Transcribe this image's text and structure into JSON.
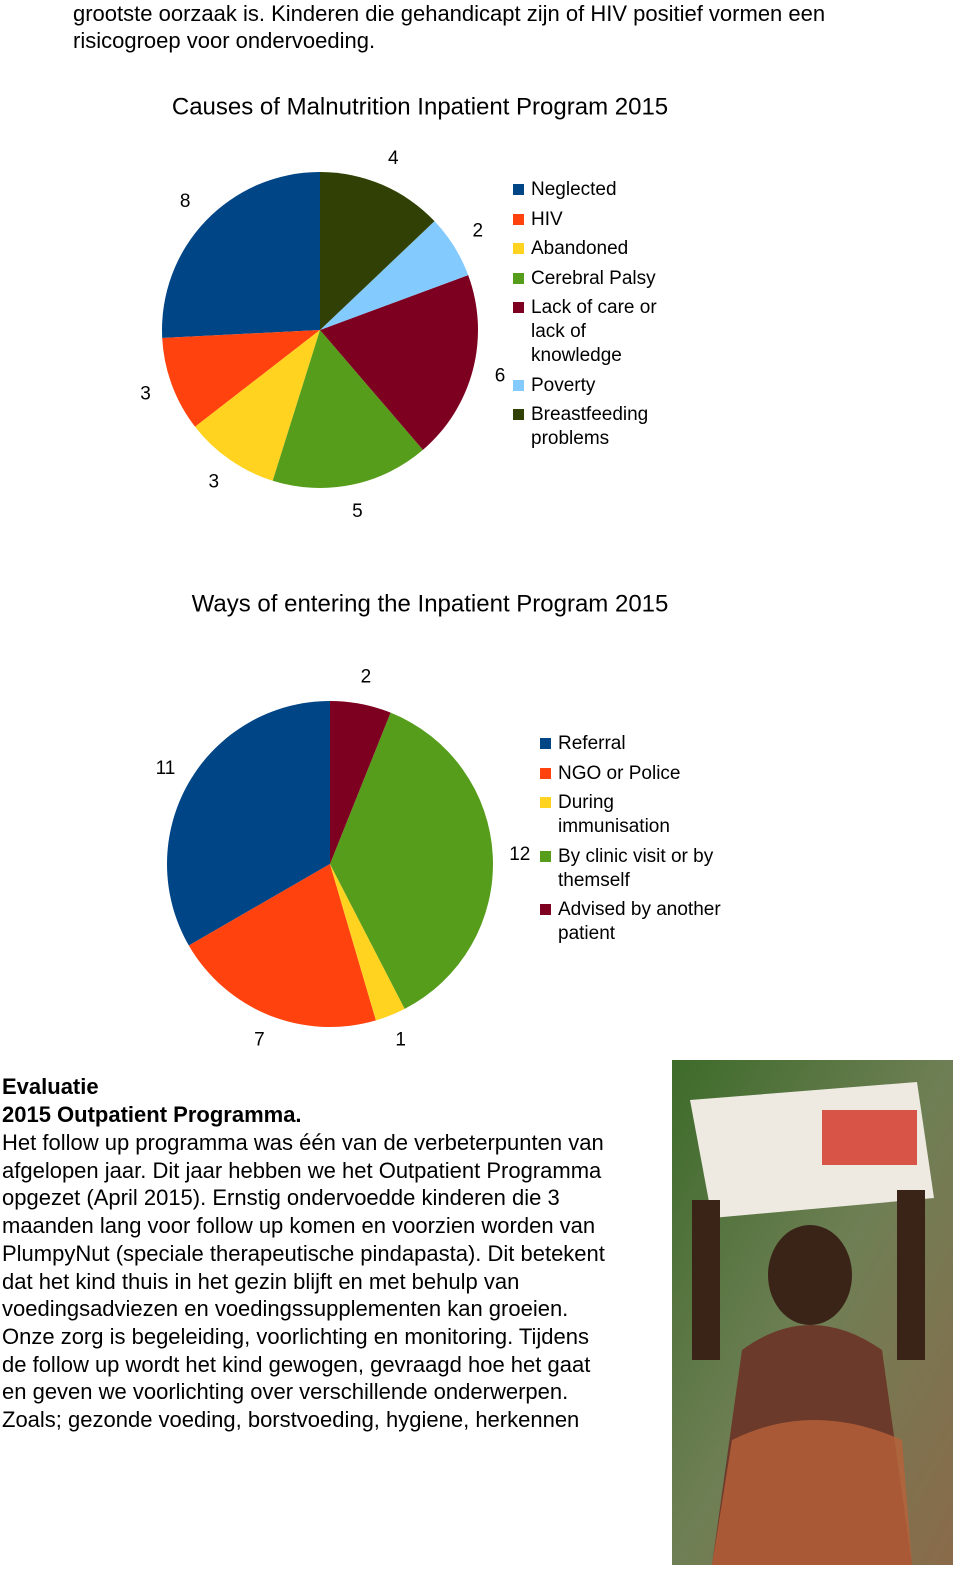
{
  "intro": [
    "grootste oorzaak is. Kinderen die gehandicapt zijn of HIV positief vormen een",
    "risicogroep voor ondervoeding."
  ],
  "chart_data": [
    {
      "type": "pie",
      "title": "Causes of Malnutrition Inpatient Program 2015",
      "categories": [
        "Neglected",
        "HIV",
        "Abandoned",
        "Cerebral Palsy",
        "Lack of care or lack of knowledge",
        "Poverty",
        "Breastfeeding problems"
      ],
      "values": [
        8,
        3,
        3,
        5,
        6,
        2,
        4
      ],
      "colors": [
        "#004586",
        "#ff420e",
        "#ffd320",
        "#579d1c",
        "#7e0021",
        "#83caff",
        "#314004"
      ]
    },
    {
      "type": "pie",
      "title": "Ways of entering the Inpatient Program 2015",
      "categories": [
        "Referral",
        "NGO or Police",
        "During immunisation",
        "By clinic visit or by themself",
        "Advised by another patient"
      ],
      "values": [
        11,
        7,
        1,
        12,
        2
      ],
      "colors": [
        "#004586",
        "#ff420e",
        "#ffd320",
        "#579d1c",
        "#7e0021"
      ]
    }
  ],
  "section": {
    "heading": "Evaluatie",
    "subheading": "2015 Outpatient Programma.",
    "lines": [
      "Het follow up programma was één van de verbeterpunten van",
      "afgelopen jaar. Dit jaar hebben we het Outpatient Programma",
      "opgezet (April 2015). Ernstig ondervoedde kinderen die 3",
      "maanden lang voor follow up komen en voorzien worden van",
      "PlumpyNut (speciale therapeutische pindapasta). Dit betekent",
      "dat het kind thuis in het gezin blijft en met behulp van",
      "voedingsadviezen en voedingssupplementen kan groeien.",
      "Onze zorg is begeleiding, voorlichting en monitoring. Tijdens",
      "de follow up wordt het kind gewogen, gevraagd hoe het gaat",
      "en geven we voorlichting over verschillende onderwerpen.",
      "Zoals; gezonde voeding, borstvoeding, hygiene, herkennen"
    ]
  }
}
